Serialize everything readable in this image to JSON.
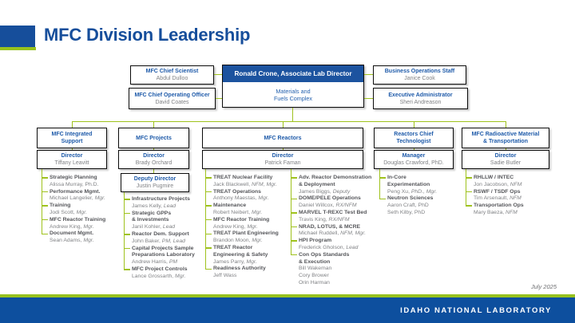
{
  "slide": {
    "title": "MFC Division Leadership",
    "date": "July 2025",
    "footer_text": "IDAHO NATIONAL LABORATORY"
  },
  "colors": {
    "brand_blue": "#164e9b",
    "accent_green": "#97c21e",
    "box_title_blue": "#1e5aa9",
    "name_gray": "#808285",
    "list_title_gray": "#55565a"
  },
  "top": {
    "left_boxes": [
      {
        "title": "MFC Chief Scientist",
        "name": "Abdul Dulloo"
      },
      {
        "title": "MFC Chief Operating Officer",
        "name": "David Coates"
      }
    ],
    "center": {
      "header": "Ronald Crone, Associate Lab Director",
      "body": "Materials and\nFuels Complex"
    },
    "right_boxes": [
      {
        "title": "Business Operations Staff",
        "name": "Janice Cook"
      },
      {
        "title": "Executive Administrator",
        "name": "Sheri Andreason"
      }
    ]
  },
  "divisions": [
    {
      "name": "MFC Integrated\nSupport",
      "leader_label": "Director",
      "leader_name": "Tiffany Leavitt",
      "lists": [
        [
          {
            "title": "Strategic Planning",
            "people": [
              {
                "t": "Alissa Murray, Ph.D.",
                "i": ""
              }
            ]
          },
          {
            "title": "Performance Mgmt.",
            "people": [
              {
                "t": "Michael Langelier, ",
                "i": "Mgr."
              }
            ]
          },
          {
            "title": "Training",
            "people": [
              {
                "t": "Jodi Scott, ",
                "i": "Mgr."
              }
            ]
          },
          {
            "title": "MFC Reactor Training",
            "people": [
              {
                "t": "Andrew King, ",
                "i": "Mgr."
              }
            ]
          },
          {
            "title": "Document Mgmt.",
            "people": [
              {
                "t": "Sean Adams, ",
                "i": "Mgr."
              }
            ]
          }
        ]
      ]
    },
    {
      "name": "MFC Projects",
      "leader_label": "Director",
      "leader_name": "Brady Orchard",
      "deputy_label": "Deputy Director",
      "deputy_name": "Justin Pugmire",
      "lists": [
        [
          {
            "title": "Infrastructure Projects",
            "people": [
              {
                "t": "James Kelly, ",
                "i": "Lead"
              }
            ]
          },
          {
            "title": "Strategic GPPs\n& Investments",
            "people": [
              {
                "t": "Janil Kohler, ",
                "i": "Lead"
              }
            ]
          },
          {
            "title": "Reactor Dem. Support",
            "people": [
              {
                "t": "John Baker, ",
                "i": "PM, Lead"
              }
            ]
          },
          {
            "title": "Capital Projects Sample\nPreparations Laboratory",
            "people": [
              {
                "t": "Andrew Harris, ",
                "i": "PM"
              }
            ]
          },
          {
            "title": "MFC Project Controls",
            "people": [
              {
                "t": "Lance Grossarth, ",
                "i": "Mgr."
              }
            ]
          }
        ]
      ]
    },
    {
      "name": "MFC Reactors",
      "leader_label": "Director",
      "leader_name": "Patrick Faman",
      "lists": [
        [
          {
            "title": "TREAT Nuclear Facility",
            "people": [
              {
                "t": "Jack Blackwell, ",
                "i": "NFM, Mgr."
              }
            ]
          },
          {
            "title": "TREAT Operations",
            "people": [
              {
                "t": "Anthony Maestas, ",
                "i": "Mgr."
              }
            ]
          },
          {
            "title": "Maintenance",
            "people": [
              {
                "t": "Robert Neibert, ",
                "i": "Mgr."
              }
            ]
          },
          {
            "title": "MFC Reactor Training",
            "people": [
              {
                "t": "Andrew King, ",
                "i": "Mgr."
              }
            ]
          },
          {
            "title": "TREAT Plant Engineering",
            "people": [
              {
                "t": "Brandon Moon, ",
                "i": "Mgr."
              }
            ]
          },
          {
            "title": "TREAT Reactor\nEngineering & Safety",
            "people": [
              {
                "t": "James Parry, ",
                "i": "Mgr."
              }
            ]
          },
          {
            "title": "Readiness Authority",
            "people": [
              {
                "t": "Jeff Wass",
                "i": ""
              }
            ]
          }
        ],
        [
          {
            "title": "Adv. Reactor Demonstration\n& Deployment",
            "people": [
              {
                "t": "James Biggs, ",
                "i": "Deputy"
              }
            ]
          },
          {
            "title": "DOME/PELE Operations",
            "people": [
              {
                "t": "Daniel Willcox, ",
                "i": "RX/NFM"
              }
            ]
          },
          {
            "title": "MARVEL T-REXC Test Bed",
            "people": [
              {
                "t": "Travis King, ",
                "i": "RX/NFM"
              }
            ]
          },
          {
            "title": "NRAD, LOTUS, & MCRE",
            "people": [
              {
                "t": "Michael Ruddell, ",
                "i": "NFM, Mgr."
              }
            ]
          },
          {
            "title": "HPI Program",
            "people": [
              {
                "t": "Frederick Gholson, ",
                "i": "Lead"
              }
            ]
          },
          {
            "title": "Con Ops Standards\n& Execution",
            "people": [
              {
                "t": "Bill Wakeman",
                "i": ""
              },
              {
                "t": "Cory Brower",
                "i": ""
              },
              {
                "t": "Orin Harman",
                "i": ""
              }
            ]
          }
        ]
      ]
    },
    {
      "name": "Reactors Chief\nTechnologist",
      "leader_label": "Manager",
      "leader_name": "Douglas Crawford, PhD.",
      "lists": [
        [
          {
            "title": "In-Core\nExperimentation",
            "people": [
              {
                "t": "Peng Xu, ",
                "i": "PhD., Mgr."
              }
            ]
          },
          {
            "title": "Neutron Sciences",
            "people": [
              {
                "t": "Aaron Craft, PhD",
                "i": ""
              },
              {
                "t": "Seth Kilby, PhD",
                "i": ""
              }
            ]
          }
        ]
      ]
    },
    {
      "name": "MFC Radioactive Material\n& Transportation",
      "leader_label": "Director",
      "leader_name": "Sadie Butler",
      "lists": [
        [
          {
            "title": "RHLLW / INTEC",
            "people": [
              {
                "t": "Jon Jacobson, ",
                "i": "NFM"
              }
            ]
          },
          {
            "title": "RSWF / TSDF Ops",
            "people": [
              {
                "t": "Tim Arsenault, ",
                "i": "NFM"
              }
            ]
          },
          {
            "title": "Transportation Ops",
            "people": [
              {
                "t": "Mary Baeza, ",
                "i": "NFM"
              }
            ]
          }
        ]
      ]
    }
  ]
}
